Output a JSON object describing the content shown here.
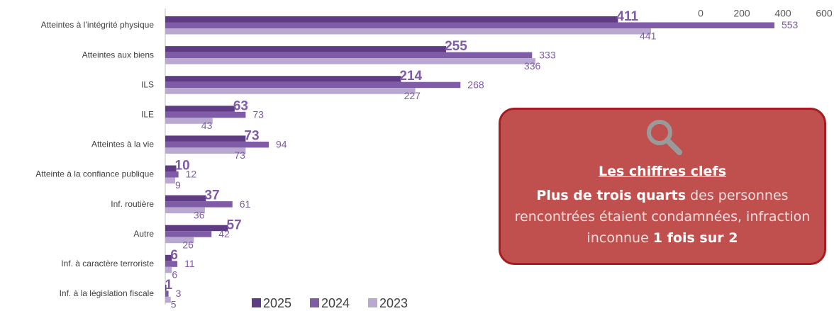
{
  "chart_data": {
    "type": "bar",
    "orientation": "horizontal",
    "categories": [
      "Atteintes à l’intégrité physique",
      "Atteintes aux biens",
      "ILS",
      "ILE",
      "Atteintes à la vie",
      "Atteinte à la confiance publique",
      "Inf. routière",
      "Autre",
      "Inf. à caractère terroriste",
      "Inf. à la législation fiscale"
    ],
    "series": [
      {
        "name": "2025",
        "color": "#5e3b82",
        "values": [
          411,
          255,
          214,
          63,
          73,
          10,
          37,
          57,
          6,
          1
        ]
      },
      {
        "name": "2024",
        "color": "#7f5ba8",
        "values": [
          553,
          333,
          268,
          73,
          94,
          12,
          61,
          42,
          11,
          3
        ]
      },
      {
        "name": "2023",
        "color": "#b9a9d1",
        "values": [
          441,
          336,
          227,
          43,
          73,
          9,
          36,
          26,
          6,
          5
        ]
      }
    ],
    "xlim": [
      0,
      600
    ],
    "xticks": [
      0,
      200,
      400,
      600
    ],
    "legend": "bottom"
  },
  "callout": {
    "title": "Les chiffres clefs",
    "text": [
      {
        "bold": true,
        "text": "Plus de trois quarts"
      },
      {
        "bold": false,
        "text": " des personnes rencontrées étaient condamnées, infraction inconnue "
      },
      {
        "bold": true,
        "text": "1 fois sur 2"
      }
    ]
  }
}
